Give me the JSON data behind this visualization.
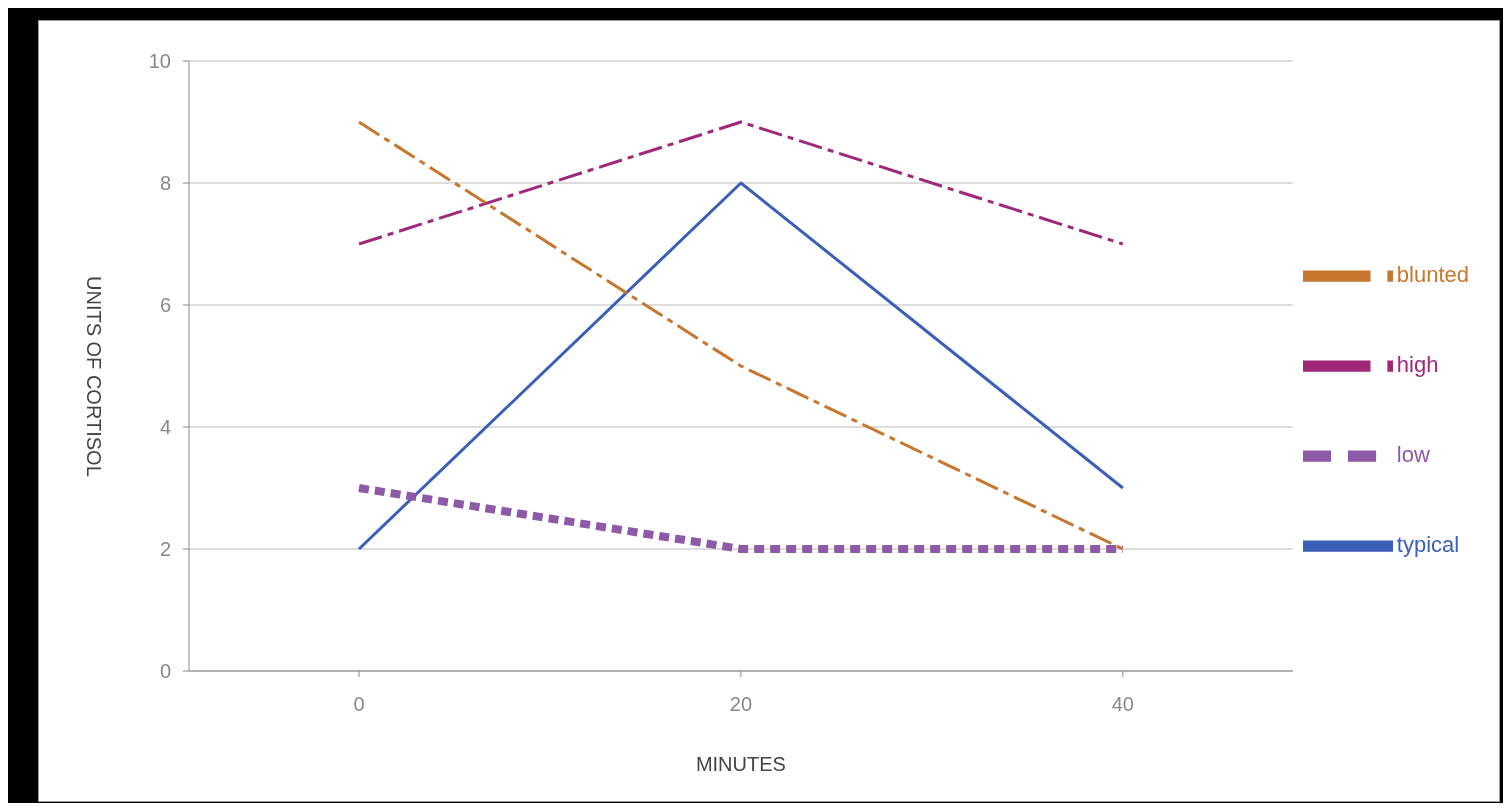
{
  "chart_data": {
    "type": "line",
    "xlabel": "MINUTES",
    "ylabel": "UNITS OF CORTISOL",
    "categories": [
      "0",
      "20",
      "40"
    ],
    "series": [
      {
        "name": "typical",
        "color": "#3a5fb8",
        "values": [
          2,
          8,
          3
        ],
        "line_style": "solid"
      },
      {
        "name": "low",
        "color": "#8e5aa8",
        "values": [
          3,
          2,
          2
        ],
        "line_style": "dotted"
      },
      {
        "name": "high",
        "color": "#a0287a",
        "values": [
          7,
          9,
          7
        ],
        "line_style": "dashed"
      },
      {
        "name": "blunted",
        "color": "#c8762e",
        "values": [
          9,
          5,
          2
        ],
        "line_style": "dashed"
      }
    ],
    "ylim": [
      0,
      10
    ],
    "yticks": [
      0,
      2,
      4,
      6,
      8,
      10
    ],
    "grid": "y",
    "legend": "right",
    "marker": "none"
  }
}
